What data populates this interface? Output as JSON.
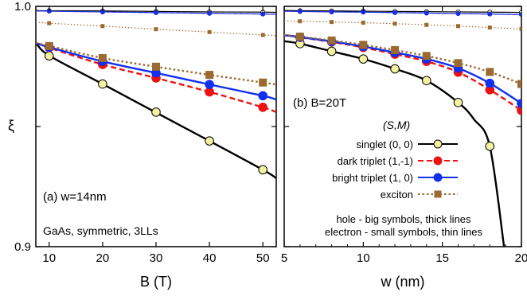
{
  "chart_data": [
    {
      "type": "line",
      "panel_label": "(a) w=14nm",
      "note": "GaAs, symmetric, 3LLs",
      "xlabel": "B (T)",
      "ylabel": "ξ",
      "xlim": [
        7.5,
        52.5
      ],
      "ylim": [
        0.9,
        1.0
      ],
      "xticks": [
        10,
        20,
        30,
        40,
        50
      ],
      "xtick_labels": [
        "10",
        "20",
        "30",
        "40",
        "50"
      ],
      "yticks": [
        0.9,
        0.95,
        1.0
      ],
      "ytick_labels": [
        "0.9",
        "",
        "1.0"
      ],
      "x": [
        10,
        20,
        30,
        40,
        50
      ],
      "series": [
        {
          "id": "singlet_hole",
          "carrier": "hole",
          "color": "#000000",
          "marker": "circle",
          "fill": "#f2f2a0",
          "dash": "solid",
          "values": [
            0.9794,
            0.9677,
            0.956,
            0.944,
            0.932
          ],
          "curve_x": [
            7.5,
            10,
            20,
            30,
            40,
            50,
            52.5
          ],
          "curve_y": [
            0.985,
            0.9795,
            0.9677,
            0.9558,
            0.944,
            0.932,
            0.9285
          ]
        },
        {
          "id": "dark_triplet_hole",
          "carrier": "hole",
          "color": "#ee1111",
          "marker": "circle",
          "fill": "#ee1111",
          "dash": "dashed",
          "values": [
            0.9828,
            0.9758,
            0.9702,
            0.9644,
            0.958
          ],
          "curve_x": [
            7.5,
            10,
            20,
            30,
            40,
            50,
            52.5
          ],
          "curve_y": [
            0.9848,
            0.9828,
            0.9758,
            0.9702,
            0.9644,
            0.958,
            0.956
          ]
        },
        {
          "id": "bright_triplet_hole",
          "carrier": "hole",
          "color": "#1030ee",
          "marker": "circle",
          "fill": "#1030ee",
          "dash": "solid",
          "values": [
            0.983,
            0.9771,
            0.9723,
            0.9675,
            0.9628
          ],
          "curve_x": [
            7.5,
            10,
            20,
            30,
            40,
            50,
            52.5
          ],
          "curve_y": [
            0.9848,
            0.983,
            0.9771,
            0.9723,
            0.9675,
            0.9628,
            0.9612
          ]
        },
        {
          "id": "exciton_hole",
          "carrier": "hole",
          "color": "#9a6a30",
          "marker": "square",
          "fill": "#9a6a30",
          "dash": "dotted",
          "values": [
            0.9835,
            0.9785,
            0.9749,
            0.9715,
            0.9683
          ],
          "curve_x": [
            7.5,
            10,
            20,
            30,
            40,
            50,
            52.5
          ],
          "curve_y": [
            0.9848,
            0.9835,
            0.9785,
            0.9749,
            0.9715,
            0.9683,
            0.9675
          ]
        },
        {
          "id": "singlet_electron",
          "carrier": "electron",
          "color": "#000000",
          "marker": "circle",
          "fill": "#f2f2a0",
          "dash": "solid",
          "values": [
            0.9982,
            0.9981,
            0.9979,
            0.9977,
            0.9976
          ],
          "curve_x": [
            7.5,
            10,
            20,
            30,
            40,
            50,
            52.5
          ],
          "curve_y": [
            0.9983,
            0.9982,
            0.9981,
            0.9979,
            0.9977,
            0.9976,
            0.9975
          ]
        },
        {
          "id": "dark_triplet_electron",
          "carrier": "electron",
          "color": "#ee1111",
          "marker": "circle",
          "fill": "#ee1111",
          "dash": "dashed",
          "values": [
            0.998,
            0.9977,
            0.9974,
            0.9971,
            0.9968
          ],
          "curve_x": [
            7.5,
            10,
            20,
            30,
            40,
            50,
            52.5
          ],
          "curve_y": [
            0.9981,
            0.998,
            0.9977,
            0.9974,
            0.9971,
            0.9968,
            0.9967
          ]
        },
        {
          "id": "bright_triplet_electron",
          "carrier": "electron",
          "color": "#1030ee",
          "marker": "circle",
          "fill": "#1030ee",
          "dash": "solid",
          "values": [
            0.998,
            0.9977,
            0.9974,
            0.9971,
            0.9968
          ],
          "curve_x": [
            7.5,
            10,
            20,
            30,
            40,
            50,
            52.5
          ],
          "curve_y": [
            0.9981,
            0.998,
            0.9977,
            0.9974,
            0.9971,
            0.9968,
            0.9967
          ]
        },
        {
          "id": "exciton_electron",
          "carrier": "electron",
          "color": "#9a6a30",
          "marker": "square",
          "fill": "#9a6a30",
          "dash": "dotted",
          "values": [
            0.993,
            0.9918,
            0.9905,
            0.9893,
            0.9881
          ],
          "curve_x": [
            7.5,
            10,
            20,
            30,
            40,
            50,
            52.5
          ],
          "curve_y": [
            0.9935,
            0.993,
            0.9918,
            0.9905,
            0.9893,
            0.9881,
            0.9878
          ]
        }
      ]
    },
    {
      "type": "line",
      "panel_label": "(b) B=20T",
      "xlabel": "w (nm)",
      "ylabel": "",
      "xlim": [
        5,
        20
      ],
      "ylim": [
        0.9,
        1.0
      ],
      "xticks": [
        5,
        10,
        15,
        20
      ],
      "xtick_labels": [
        "5",
        "10",
        "15",
        "20"
      ],
      "minor_xticks": [
        6,
        7,
        8,
        9,
        11,
        12,
        13,
        14,
        16,
        17,
        18,
        19
      ],
      "yticks": [
        0.9,
        0.95,
        1.0
      ],
      "ytick_labels": [
        "",
        "",
        ""
      ],
      "x": [
        6,
        8,
        10,
        12,
        14,
        16,
        18,
        20
      ],
      "legend": {
        "title": "(S,M)",
        "placement": "center-right",
        "entries": [
          {
            "label": "singlet (0, 0)",
            "color": "#000000",
            "marker": "circle",
            "fill": "#f2f2a0",
            "dash": "solid"
          },
          {
            "label": "dark triplet (1,-1)",
            "color": "#ee1111",
            "marker": "circle",
            "fill": "#ee1111",
            "dash": "dashed"
          },
          {
            "label": "bright triplet (1, 0)",
            "color": "#1030ee",
            "marker": "circle",
            "fill": "#1030ee",
            "dash": "solid"
          },
          {
            "label": "exciton",
            "color": "#9a6a30",
            "marker": "square",
            "fill": "#9a6a30",
            "dash": "dotted"
          }
        ]
      },
      "notes": [
        "hole - big symbols, thick lines",
        "electron - small symbols, thin lines"
      ],
      "series": [
        {
          "id": "singlet_hole",
          "carrier": "hole",
          "color": "#000000",
          "marker": "circle",
          "fill": "#f2f2a0",
          "dash": "solid",
          "values": [
            0.9845,
            0.9813,
            0.9781,
            0.974,
            0.9691,
            0.96,
            0.9418,
            null
          ],
          "curve_x": [
            5,
            6,
            8,
            10,
            12,
            14,
            16,
            17,
            18,
            18.9
          ],
          "curve_y": [
            0.9855,
            0.9845,
            0.9813,
            0.9781,
            0.974,
            0.9691,
            0.96,
            0.953,
            0.9418,
            0.9
          ]
        },
        {
          "id": "dark_triplet_hole",
          "carrier": "hole",
          "color": "#ee1111",
          "marker": "circle",
          "fill": "#ee1111",
          "dash": "dashed",
          "values": [
            0.9871,
            0.9852,
            0.9829,
            0.9801,
            0.9771,
            0.9726,
            0.9653,
            0.9567
          ],
          "curve_x": [
            5,
            6,
            8,
            10,
            12,
            14,
            16,
            18,
            20
          ],
          "curve_y": [
            0.988,
            0.9871,
            0.9852,
            0.9829,
            0.9801,
            0.9771,
            0.9726,
            0.9653,
            0.9567
          ]
        },
        {
          "id": "bright_triplet_hole",
          "carrier": "hole",
          "color": "#1030ee",
          "marker": "circle",
          "fill": "#1030ee",
          "dash": "solid",
          "values": [
            0.9872,
            0.9854,
            0.9833,
            0.9808,
            0.9781,
            0.9743,
            0.968,
            0.9596
          ],
          "curve_x": [
            5,
            6,
            8,
            10,
            12,
            14,
            16,
            18,
            20
          ],
          "curve_y": [
            0.988,
            0.9872,
            0.9854,
            0.9833,
            0.9808,
            0.9781,
            0.9743,
            0.968,
            0.9596
          ]
        },
        {
          "id": "exciton_hole",
          "carrier": "hole",
          "color": "#9a6a30",
          "marker": "square",
          "fill": "#9a6a30",
          "dash": "dotted",
          "values": [
            0.9874,
            0.9858,
            0.984,
            0.9818,
            0.9794,
            0.9764,
            0.9727,
            0.9677
          ],
          "curve_x": [
            5,
            6,
            8,
            10,
            12,
            14,
            16,
            18,
            20
          ],
          "curve_y": [
            0.9881,
            0.9874,
            0.9858,
            0.984,
            0.9818,
            0.9794,
            0.9764,
            0.9727,
            0.9677
          ]
        },
        {
          "id": "singlet_electron",
          "carrier": "electron",
          "color": "#000000",
          "marker": "circle",
          "fill": "#f2f2a0",
          "dash": "solid",
          "values": [
            0.9982,
            0.9981,
            0.998,
            0.9979,
            0.9978,
            0.9977,
            0.9976,
            0.9975
          ],
          "curve_x": [
            5,
            6,
            8,
            10,
            12,
            14,
            16,
            18,
            20
          ],
          "curve_y": [
            0.9983,
            0.9982,
            0.9981,
            0.998,
            0.9979,
            0.9978,
            0.9977,
            0.9976,
            0.9975
          ]
        },
        {
          "id": "dark_triplet_electron",
          "carrier": "electron",
          "color": "#ee1111",
          "marker": "circle",
          "fill": "#ee1111",
          "dash": "dashed",
          "values": [
            0.9979,
            0.9977,
            0.9976,
            0.9974,
            0.9972,
            0.997,
            0.9968,
            0.9966
          ],
          "curve_x": [
            5,
            6,
            8,
            10,
            12,
            14,
            16,
            18,
            20
          ],
          "curve_y": [
            0.998,
            0.9979,
            0.9977,
            0.9976,
            0.9974,
            0.9972,
            0.997,
            0.9968,
            0.9966
          ]
        },
        {
          "id": "bright_triplet_electron",
          "carrier": "electron",
          "color": "#1030ee",
          "marker": "circle",
          "fill": "#1030ee",
          "dash": "solid",
          "values": [
            0.9979,
            0.9977,
            0.9976,
            0.9974,
            0.9972,
            0.997,
            0.9968,
            0.9966
          ],
          "curve_x": [
            5,
            6,
            8,
            10,
            12,
            14,
            16,
            18,
            20
          ],
          "curve_y": [
            0.998,
            0.9979,
            0.9977,
            0.9976,
            0.9974,
            0.9972,
            0.997,
            0.9968,
            0.9966
          ]
        },
        {
          "id": "exciton_electron",
          "carrier": "electron",
          "color": "#9a6a30",
          "marker": "square",
          "fill": "#9a6a30",
          "dash": "dotted",
          "values": [
            0.9938,
            0.9935,
            0.9932,
            0.9928,
            0.9923,
            0.9918,
            0.9912,
            0.9906
          ],
          "curve_x": [
            5,
            6,
            8,
            10,
            12,
            14,
            16,
            18,
            20
          ],
          "curve_y": [
            0.994,
            0.9938,
            0.9935,
            0.9932,
            0.9928,
            0.9923,
            0.9918,
            0.9912,
            0.9906
          ]
        }
      ]
    }
  ]
}
